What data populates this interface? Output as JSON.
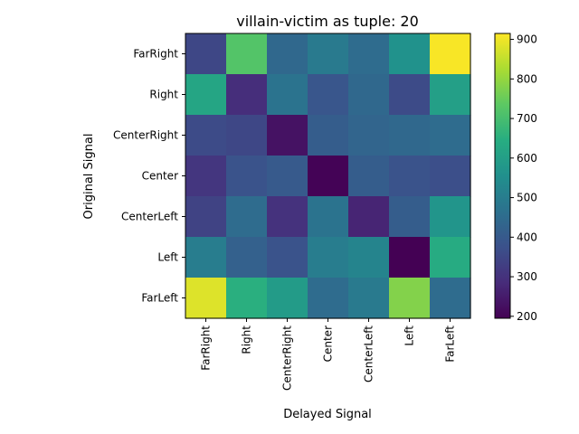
{
  "chart_data": {
    "type": "heatmap",
    "title": "villain-victim as tuple: 20",
    "xlabel": "Delayed Signal",
    "ylabel": "Original Signal",
    "x_categories": [
      "FarRight",
      "Right",
      "CenterRight",
      "Center",
      "CenterLeft",
      "Left",
      "FarLeft"
    ],
    "y_categories": [
      "FarRight",
      "Right",
      "CenterRight",
      "Center",
      "CenterLeft",
      "Left",
      "FarLeft"
    ],
    "values": [
      [
        350,
        720,
        440,
        490,
        450,
        560,
        910
      ],
      [
        620,
        290,
        470,
        390,
        440,
        360,
        600
      ],
      [
        360,
        350,
        230,
        410,
        430,
        440,
        450
      ],
      [
        310,
        380,
        400,
        200,
        410,
        380,
        370
      ],
      [
        340,
        450,
        300,
        470,
        270,
        410,
        570
      ],
      [
        500,
        420,
        380,
        500,
        520,
        195,
        640
      ],
      [
        880,
        650,
        590,
        450,
        490,
        780,
        450
      ]
    ],
    "colorbar": {
      "min": 195,
      "max": 915,
      "ticks": [
        200,
        300,
        400,
        500,
        600,
        700,
        800,
        900
      ],
      "colormap": "viridis"
    }
  }
}
